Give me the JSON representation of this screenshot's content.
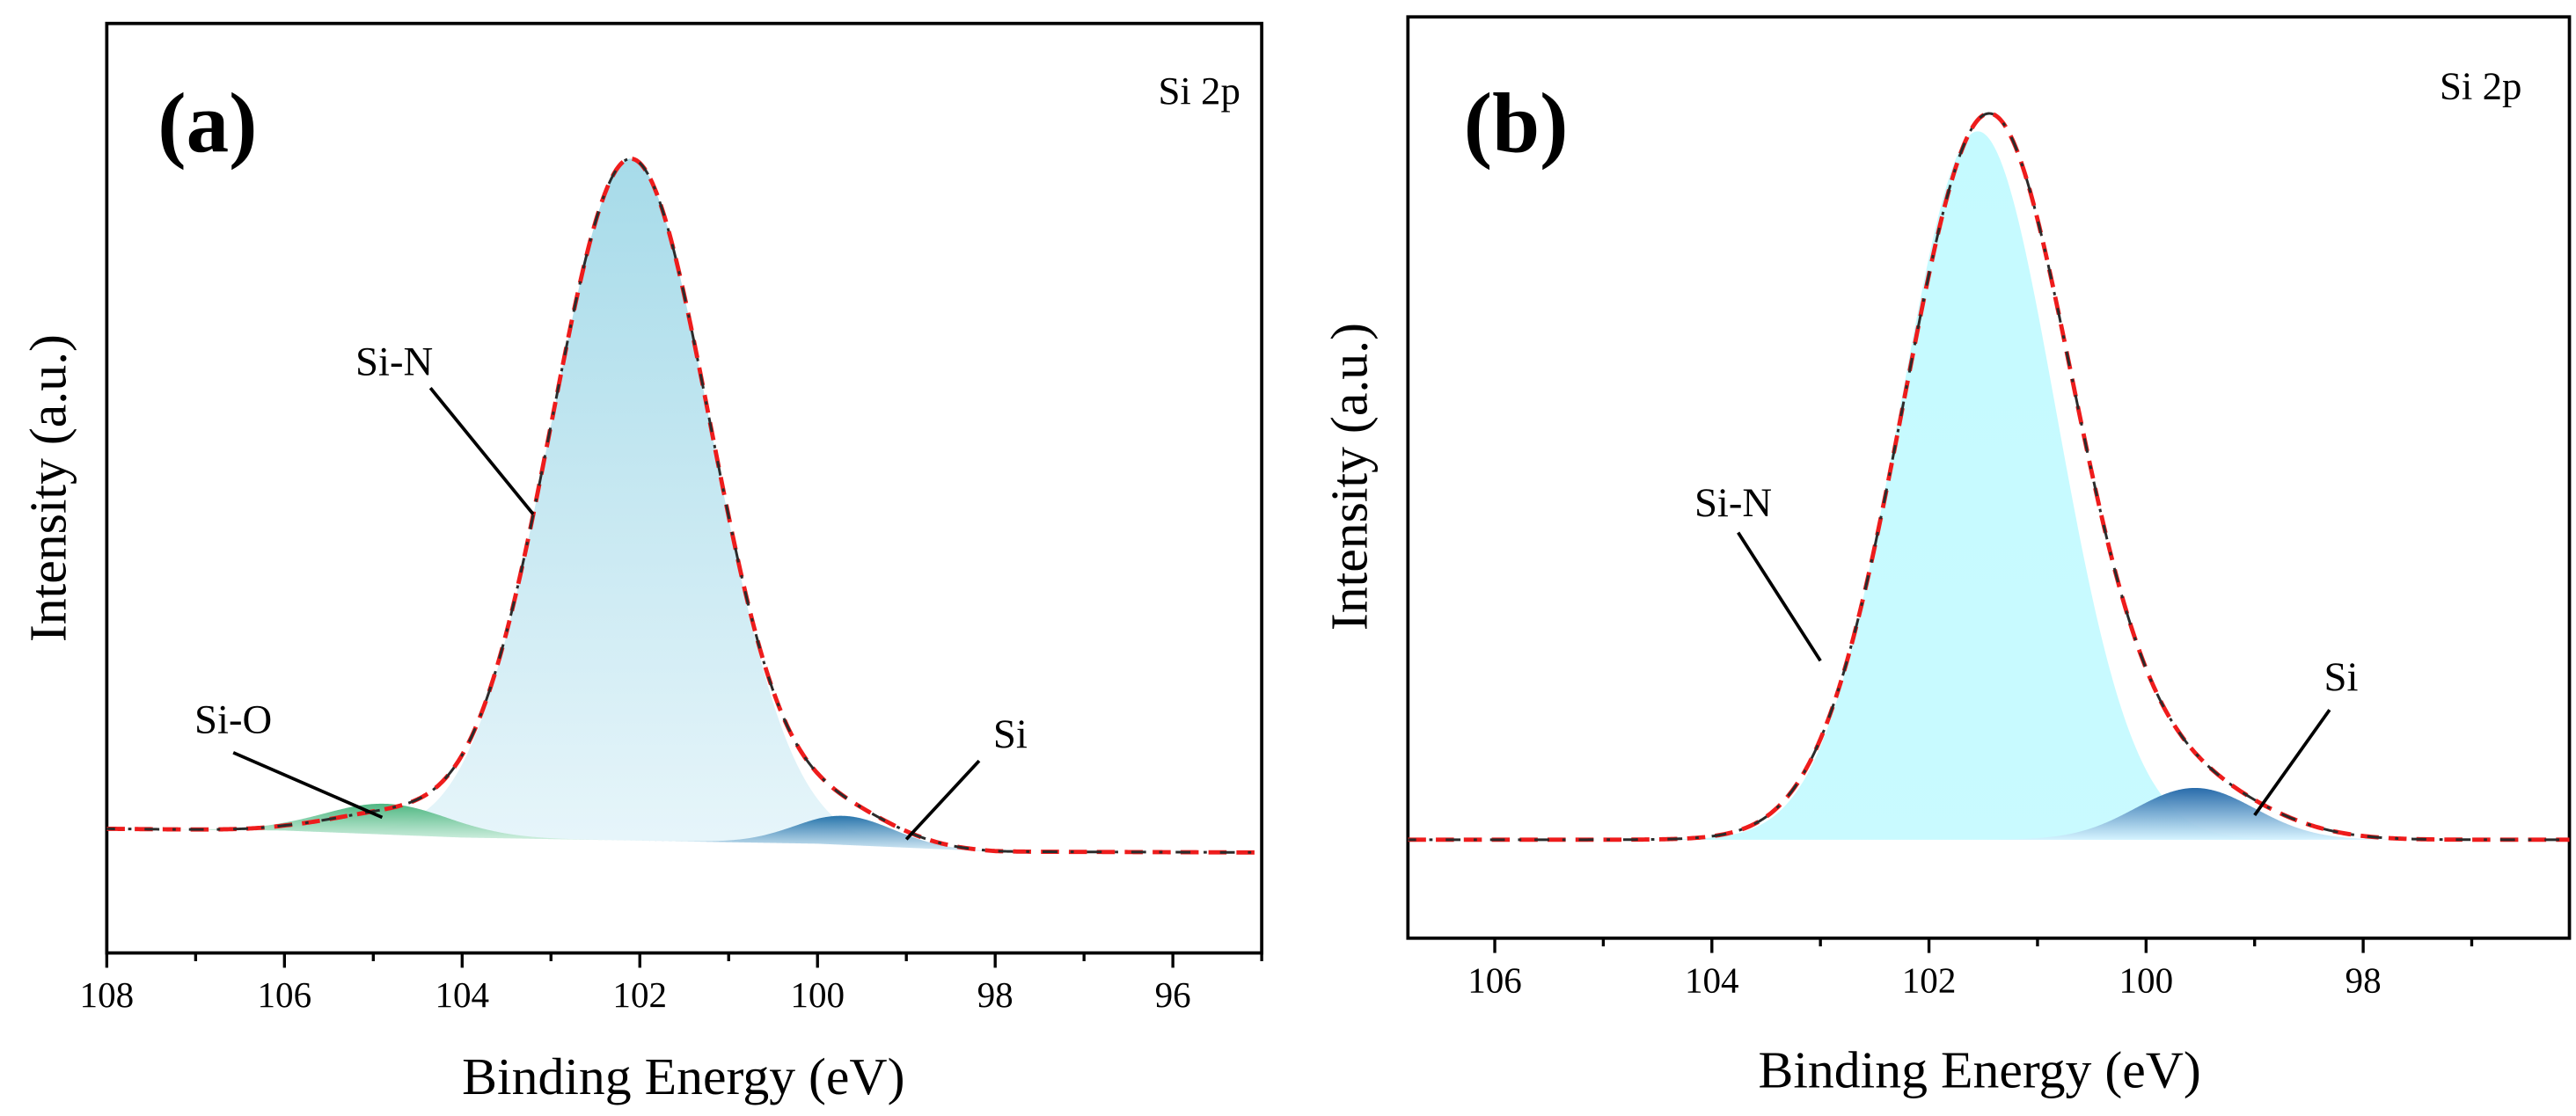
{
  "chart_data": [
    {
      "type": "area",
      "panel_label": "(a)",
      "title": "Si 2p",
      "xlabel": "Binding Energy (eV)",
      "ylabel": "Intensity (a.u.)",
      "xlim": [
        108,
        95
      ],
      "ylim": [
        0,
        1
      ],
      "x_ticks": [
        108,
        106,
        104,
        102,
        100,
        98,
        96
      ],
      "x_tick_labels": [
        "108",
        "106",
        "104",
        "102",
        "100",
        "98",
        "96"
      ],
      "grid": false,
      "envelope": {
        "name": "fitted envelope",
        "baseline": [
          [
            108,
            0.132
          ],
          [
            106,
            0.13
          ],
          [
            104,
            0.122
          ],
          [
            100,
            0.115
          ],
          [
            98,
            0.106
          ],
          [
            95,
            0.105
          ]
        ],
        "peaks": [
          {
            "center": 102.1,
            "height": 0.776,
            "sigma": 0.9
          },
          {
            "center": 104.85,
            "height": 0.022,
            "sigma": 0.7
          },
          {
            "center": 99.7,
            "height": 0.033,
            "sigma": 0.6
          }
        ]
      },
      "components": [
        {
          "name": "Si-N",
          "center": 102.1,
          "height": 0.776,
          "sigma": 0.9,
          "fill_color": "#a8dcea"
        },
        {
          "name": "Si-O",
          "center": 104.85,
          "height": 0.035,
          "sigma": 0.7,
          "fill_color": "#5cc08a"
        },
        {
          "name": "Si",
          "center": 99.7,
          "height": 0.033,
          "sigma": 0.55,
          "fill_color": "#2f86bb"
        }
      ],
      "annotations": [
        {
          "text": "Si-N",
          "target": [
            103.2,
            0.49
          ]
        },
        {
          "text": "Si-O",
          "target": [
            104.9,
            0.145
          ]
        },
        {
          "text": "Si",
          "target": [
            99.0,
            0.12
          ]
        }
      ]
    },
    {
      "type": "area",
      "panel_label": "(b)",
      "title": "Si 2p",
      "xlabel": "Binding Energy (eV)",
      "ylabel": "Intensity (a.u.)",
      "xlim": [
        106.8,
        96.1
      ],
      "ylim": [
        0,
        1
      ],
      "x_ticks": [
        106,
        104,
        102,
        100,
        98
      ],
      "x_tick_labels": [
        "106",
        "104",
        "102",
        "100",
        "98"
      ],
      "grid": false,
      "envelope": {
        "name": "fitted envelope",
        "baseline": [
          [
            106.8,
            0.103
          ],
          [
            96.1,
            0.103
          ]
        ],
        "peaks": [
          {
            "center": 101.45,
            "height": 0.798,
            "sigma": 0.78
          },
          {
            "center": 99.6,
            "height": 0.055,
            "sigma": 0.7
          }
        ]
      },
      "components": [
        {
          "name": "Si-N",
          "center": 101.55,
          "height": 0.78,
          "sigma": 0.72,
          "fill_color": "#c4fbff"
        },
        {
          "name": "Si",
          "center": 99.55,
          "height": 0.057,
          "sigma": 0.55,
          "fill_color": "#2d78b8"
        }
      ],
      "annotations": [
        {
          "text": "Si-N",
          "target": [
            103.0,
            0.3
          ]
        },
        {
          "text": "Si",
          "target": [
            99.0,
            0.13
          ]
        }
      ]
    }
  ]
}
